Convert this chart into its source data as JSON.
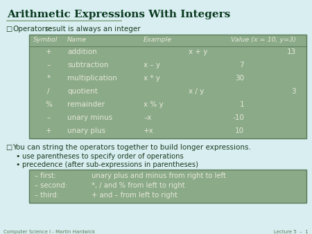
{
  "title": "Arithmetic Expressions With Integers",
  "slide_bg": "#d8eef0",
  "title_color": "#0a3a20",
  "body_color": "#1a3a20",
  "header_line_color": "#8aaa8a",
  "table_bg": "#8aaa88",
  "table_border": "#5a7a5a",
  "table_text": "#e8e8d8",
  "table_header_text": "#e8e8d8",
  "box2_bg": "#8aaa88",
  "box2_border": "#5a7a5a",
  "table_header": [
    "Symbol",
    "Name",
    "Example",
    "Value (x = 10, y=3)"
  ],
  "table_rows": [
    [
      "+",
      "addition",
      "x + y",
      "13"
    ],
    [
      "–",
      "subtraction",
      "x – y",
      "7"
    ],
    [
      "*",
      "multiplication",
      "x * y",
      "30"
    ],
    [
      "/",
      "quotient",
      "x / y",
      "3"
    ],
    [
      "%",
      "remainder",
      "x % y",
      "1"
    ],
    [
      "–",
      "unary minus",
      "–x",
      "-10"
    ],
    [
      "+",
      "unary plus",
      "+x",
      "10"
    ]
  ],
  "bullet1_label": "Operators:",
  "bullet1_text": "   result is always an integer",
  "bullet2": "You can string the operators together to build longer expressions.",
  "sub_bullet1": "use parentheses to specify order of operations",
  "sub_bullet2": "precedence (after sub-expressions in parentheses)",
  "box2_lines": [
    [
      "– first:",
      "unary plus and minus from right to left"
    ],
    [
      "– second:",
      "*, / and % from left to right"
    ],
    [
      "– third:",
      "+ and – from left to right"
    ]
  ],
  "footer_left": "Computer Science I - Martin Hardwick",
  "footer_right": "Lecture 5  –  1",
  "footer_color": "#5a7a5a"
}
